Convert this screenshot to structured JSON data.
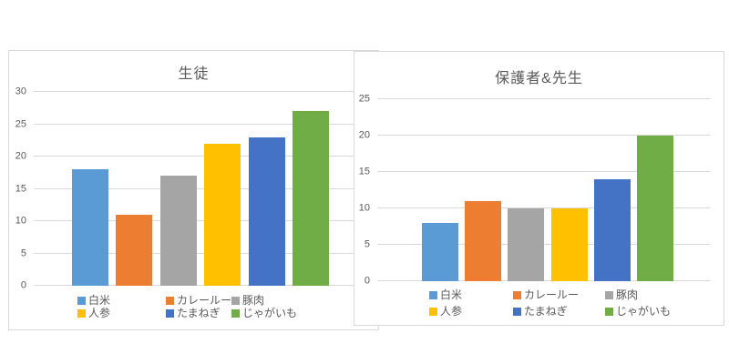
{
  "page": {
    "background": "#ffffff"
  },
  "style": {
    "panel_border_color": "#d9d9d9",
    "gridline_color": "#d9d9d9",
    "axis_label_color": "#595959",
    "title_color": "#595959",
    "legend_text_color": "#595959"
  },
  "chart_data": [
    {
      "type": "bar",
      "title": "生徒",
      "categories": [
        "白米",
        "カレールー",
        "豚肉",
        "人参",
        "たまねぎ",
        "じゃがいも"
      ],
      "values": [
        18,
        11,
        17,
        22,
        23,
        27
      ],
      "bar_colors": [
        "#5B9BD5",
        "#ED7D31",
        "#A5A5A5",
        "#FFC000",
        "#4472C4",
        "#70AD47"
      ],
      "xlabel": "",
      "ylabel": "",
      "ylim": [
        0,
        30
      ],
      "yticks": [
        0,
        5,
        10,
        15,
        20,
        25,
        30
      ],
      "grid": true,
      "legend_position": "bottom"
    },
    {
      "type": "bar",
      "title": "保護者&先生",
      "categories": [
        "白米",
        "カレールー",
        "豚肉",
        "人参",
        "たまねぎ",
        "じゃがいも"
      ],
      "values": [
        8,
        11,
        10,
        10,
        14,
        20
      ],
      "bar_colors": [
        "#5B9BD5",
        "#ED7D31",
        "#A5A5A5",
        "#FFC000",
        "#4472C4",
        "#70AD47"
      ],
      "xlabel": "",
      "ylabel": "",
      "ylim": [
        0,
        25
      ],
      "yticks": [
        0,
        5,
        10,
        15,
        20,
        25
      ],
      "grid": true,
      "legend_position": "bottom"
    }
  ]
}
